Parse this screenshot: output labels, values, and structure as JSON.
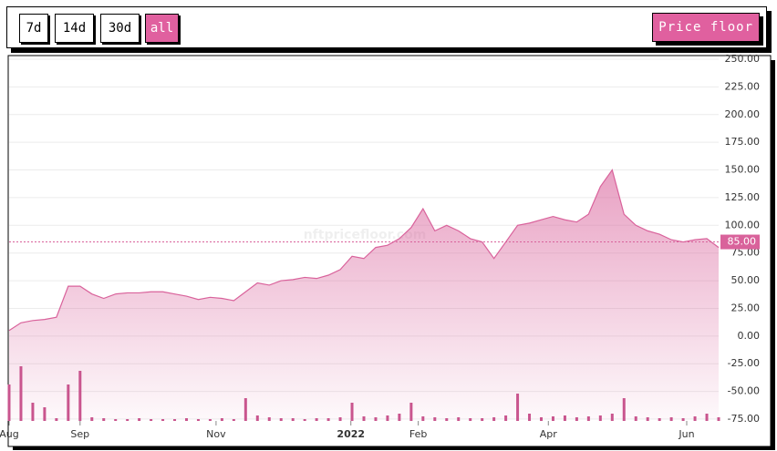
{
  "toolbar": {
    "ranges": [
      "7d",
      "14d",
      "30d",
      "all"
    ],
    "active_range": 3
  },
  "chart_data": {
    "type": "area",
    "watermark": "nftpricefloor.com",
    "xlim": [
      0,
      60
    ],
    "xticks": [
      {
        "value": 0,
        "label": "Aug"
      },
      {
        "value": 6,
        "label": "Sep"
      },
      {
        "value": 17.5,
        "label": "Nov"
      },
      {
        "value": 28.9,
        "label": "2022"
      },
      {
        "value": 34.6,
        "label": "Feb"
      },
      {
        "value": 45.6,
        "label": "Apr"
      },
      {
        "value": 57.3,
        "label": "Jun"
      }
    ],
    "ylim": [
      -75,
      250
    ],
    "yticks": [
      {
        "value": 250,
        "label": "250.00"
      },
      {
        "value": 225,
        "label": "225.00"
      },
      {
        "value": 200,
        "label": "200.00"
      },
      {
        "value": 175,
        "label": "175.00"
      },
      {
        "value": 150,
        "label": "150.00"
      },
      {
        "value": 125,
        "label": "125.00"
      },
      {
        "value": 100,
        "label": "100.00"
      },
      {
        "value": 75,
        "label": "75.00"
      },
      {
        "value": 50,
        "label": "50.00"
      },
      {
        "value": 25,
        "label": "25.00"
      },
      {
        "value": 0,
        "label": "0.00"
      },
      {
        "value": -25,
        "label": "-25.00"
      },
      {
        "value": -50,
        "label": "-50.00"
      },
      {
        "value": -75,
        "label": "-75.00"
      }
    ],
    "y2lim": [
      0,
      100
    ],
    "grid": true,
    "reference_line": {
      "value": 85,
      "label": "85.00",
      "color": "#d9629b"
    },
    "series": [
      {
        "name": "Price floor",
        "color": "#d9629b",
        "values": [
          5,
          12,
          14,
          15,
          17,
          45,
          45,
          38,
          34,
          38,
          39,
          39,
          40,
          40,
          38,
          36,
          33,
          35,
          34,
          32,
          40,
          48,
          46,
          50,
          51,
          53,
          52,
          55,
          60,
          72,
          70,
          80,
          82,
          88,
          98,
          115,
          95,
          100,
          95,
          88,
          85,
          70,
          85,
          100,
          102,
          105,
          108,
          105,
          103,
          110,
          135,
          150,
          110,
          100,
          95,
          92,
          87,
          85,
          87,
          88,
          80
        ]
      },
      {
        "axis": "y2",
        "color": "#c9558e",
        "values": [
          40,
          60,
          20,
          15,
          3,
          40,
          55,
          4,
          3,
          2,
          2,
          3,
          2,
          2,
          2,
          3,
          2,
          2,
          3,
          2,
          25,
          6,
          4,
          3,
          3,
          2,
          3,
          3,
          4,
          20,
          5,
          4,
          6,
          8,
          20,
          5,
          4,
          3,
          4,
          3,
          3,
          4,
          6,
          30,
          8,
          4,
          5,
          6,
          4,
          5,
          6,
          8,
          25,
          5,
          4,
          3,
          4,
          3,
          5,
          8,
          4
        ]
      }
    ]
  }
}
